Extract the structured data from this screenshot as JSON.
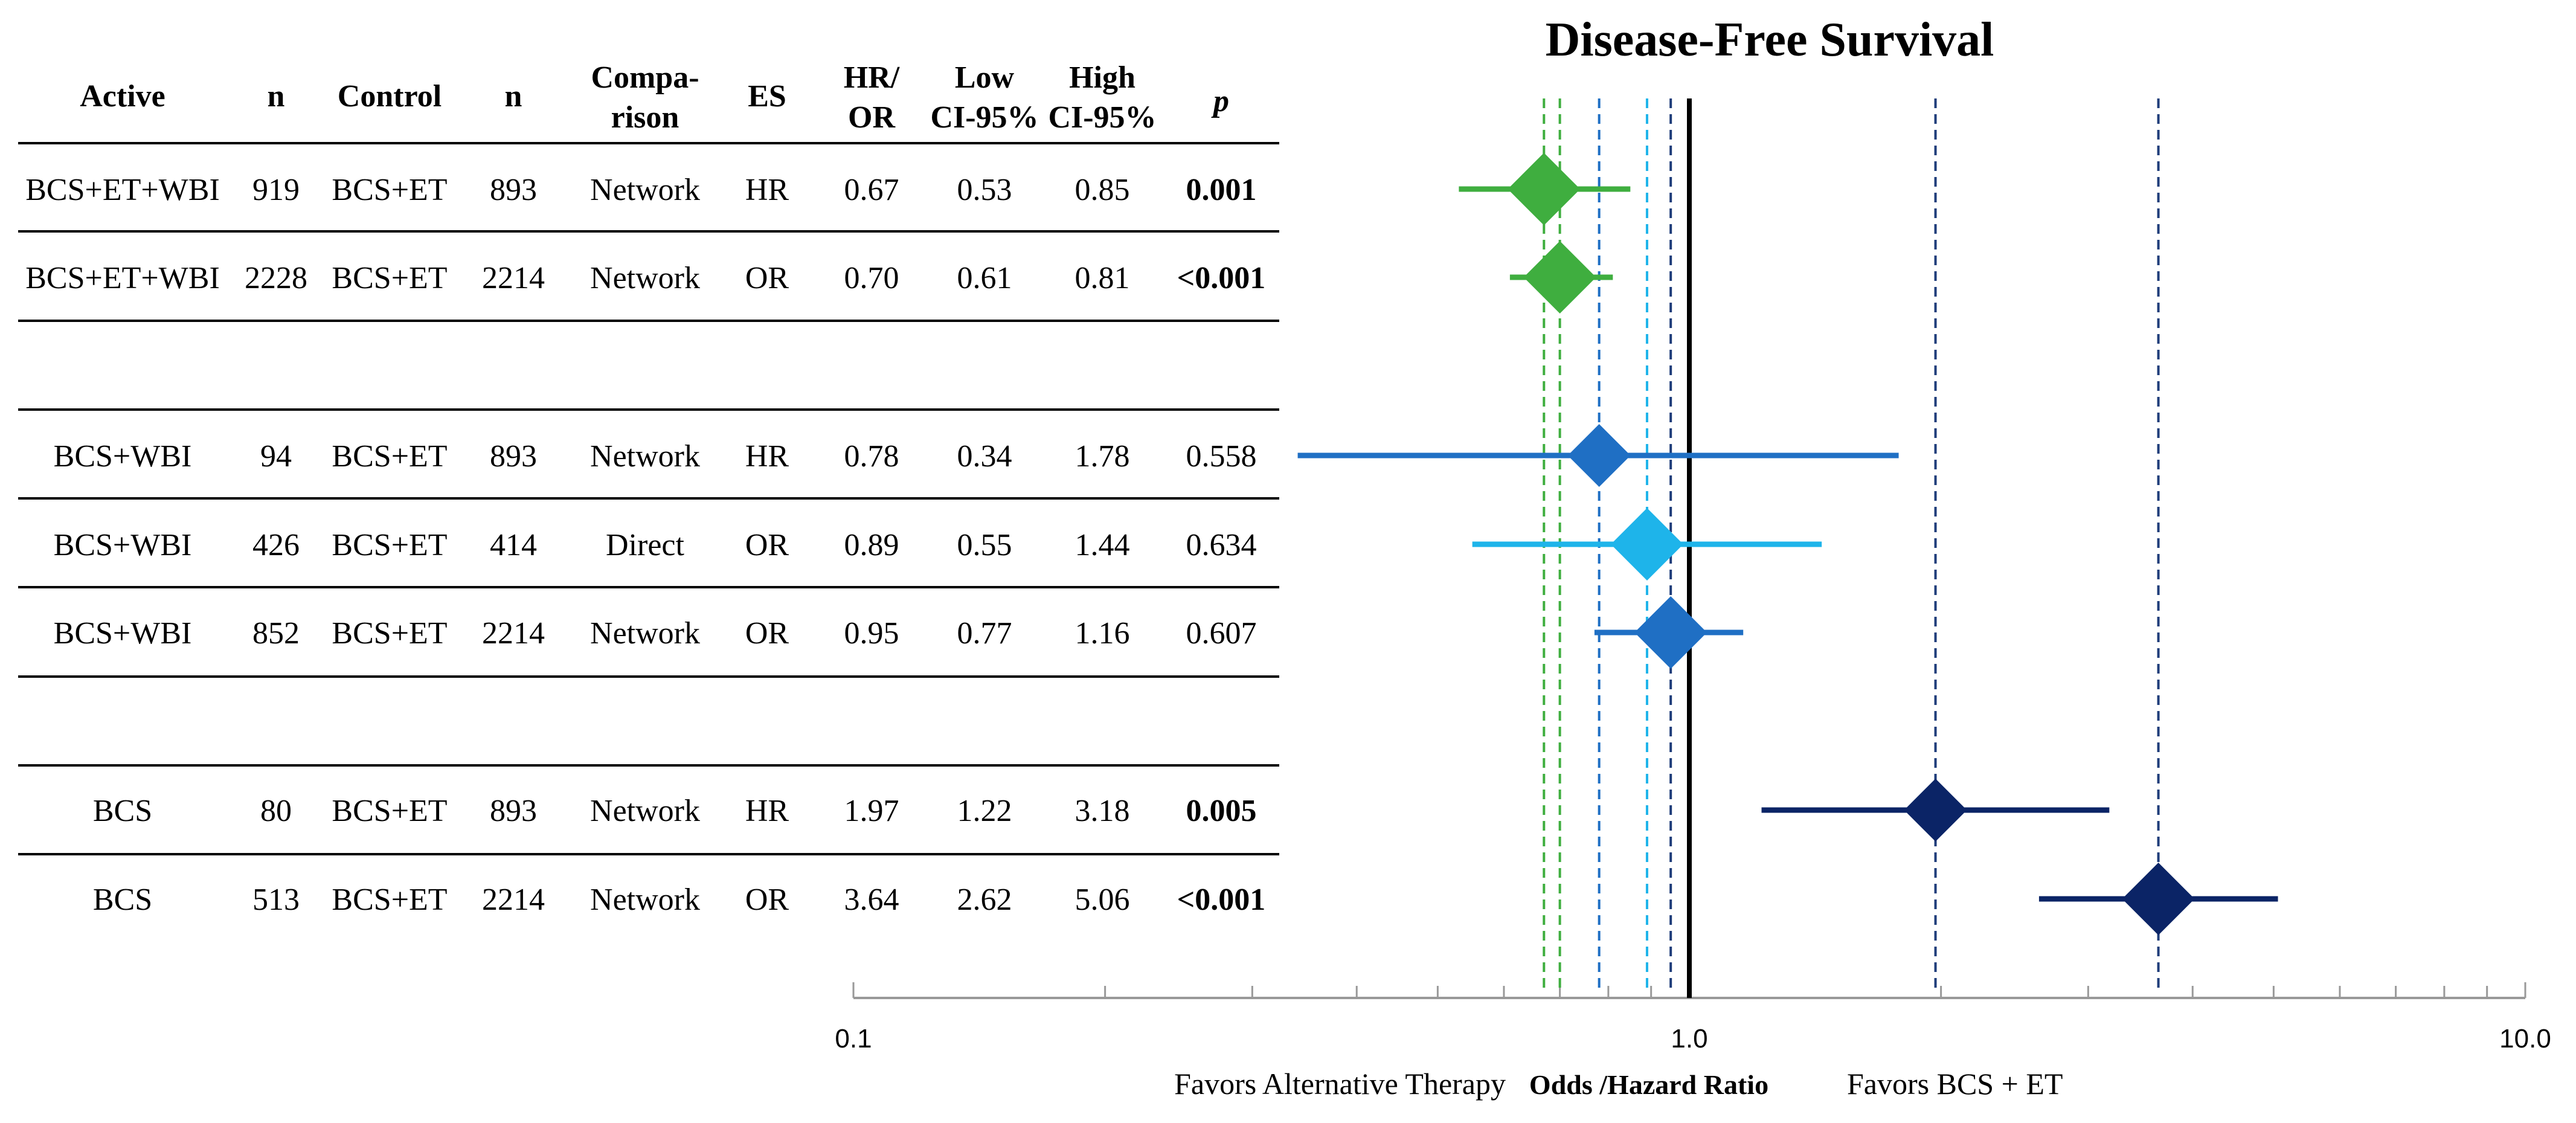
{
  "table": {
    "headers": {
      "active": "Active",
      "n1": "n",
      "control": "Control",
      "n2": "n",
      "comparison_1": "Compa-",
      "comparison_2": "rison",
      "es": "ES",
      "hr_or_1": "HR/",
      "hr_or_2": "OR",
      "low_1": "Low",
      "low_2": "CI-95%",
      "high_1": "High",
      "high_2": "CI-95%",
      "p": "p"
    },
    "rows": [
      {
        "active": "BCS+ET+WBI",
        "n1": "919",
        "control": "BCS+ET",
        "n2": "893",
        "comparison": "Network",
        "es": "HR",
        "hr": "0.67",
        "low": "0.53",
        "high": "0.85",
        "p": "0.001",
        "p_bold": true,
        "group": 0
      },
      {
        "active": "BCS+ET+WBI",
        "n1": "2228",
        "control": "BCS+ET",
        "n2": "2214",
        "comparison": "Network",
        "es": "OR",
        "hr": "0.70",
        "low": "0.61",
        "high": "0.81",
        "p": "<0.001",
        "p_bold": true,
        "group": 0
      },
      {
        "active": "BCS+WBI",
        "n1": "94",
        "control": "BCS+ET",
        "n2": "893",
        "comparison": "Network",
        "es": "HR",
        "hr": "0.78",
        "low": "0.34",
        "high": "1.78",
        "p": "0.558",
        "p_bold": false,
        "group": 1
      },
      {
        "active": "BCS+WBI",
        "n1": "426",
        "control": "BCS+ET",
        "n2": "414",
        "comparison": "Direct",
        "es": "OR",
        "hr": "0.89",
        "low": "0.55",
        "high": "1.44",
        "p": "0.634",
        "p_bold": false,
        "group": 1
      },
      {
        "active": "BCS+WBI",
        "n1": "852",
        "control": "BCS+ET",
        "n2": "2214",
        "comparison": "Network",
        "es": "OR",
        "hr": "0.95",
        "low": "0.77",
        "high": "1.16",
        "p": "0.607",
        "p_bold": false,
        "group": 1
      },
      {
        "active": "BCS",
        "n1": "80",
        "control": "BCS+ET",
        "n2": "893",
        "comparison": "Network",
        "es": "HR",
        "hr": "1.97",
        "low": "1.22",
        "high": "3.18",
        "p": "0.005",
        "p_bold": true,
        "group": 2
      },
      {
        "active": "BCS",
        "n1": "513",
        "control": "BCS+ET",
        "n2": "2214",
        "comparison": "Network",
        "es": "OR",
        "hr": "3.64",
        "low": "2.62",
        "high": "5.06",
        "p": "<0.001",
        "p_bold": true,
        "group": 2
      }
    ]
  },
  "chart_data": {
    "type": "forest",
    "title": "Disease-Free Survival",
    "x_scale": "log",
    "xlim": [
      0.1,
      10.0
    ],
    "xticks": [
      0.1,
      1.0,
      10.0
    ],
    "xtick_labels": [
      "0.1",
      "1.0",
      "10.0"
    ],
    "xlabel": "Odds /Hazard Ratio",
    "left_note": "Favors Alternative Therapy",
    "right_note": "Favors BCS + ET",
    "reference_value": 1.0,
    "points": [
      {
        "label": "BCS+ET+WBI vs BCS+ET (HR)",
        "estimate": 0.67,
        "low": 0.53,
        "high": 0.85,
        "color": "#3fae3f"
      },
      {
        "label": "BCS+ET+WBI vs BCS+ET (OR)",
        "estimate": 0.7,
        "low": 0.61,
        "high": 0.81,
        "color": "#3fae3f"
      },
      {
        "label": "BCS+WBI vs BCS+ET (HR)",
        "estimate": 0.78,
        "low": 0.34,
        "high": 1.78,
        "color": "#1f6fc4"
      },
      {
        "label": "BCS+WBI vs BCS+ET (OR, direct)",
        "estimate": 0.89,
        "low": 0.55,
        "high": 1.44,
        "color": "#1eb4ea"
      },
      {
        "label": "BCS+WBI vs BCS+ET (OR)",
        "estimate": 0.95,
        "low": 0.77,
        "high": 1.16,
        "color": "#1f6fc4"
      },
      {
        "label": "BCS vs BCS+ET (HR)",
        "estimate": 1.97,
        "low": 1.22,
        "high": 3.18,
        "color": "#0b2466"
      },
      {
        "label": "BCS vs BCS+ET (OR)",
        "estimate": 3.64,
        "low": 2.62,
        "high": 5.06,
        "color": "#0b2466"
      }
    ],
    "reference_lines": [
      {
        "value": 0.67,
        "color": "#3fae3f"
      },
      {
        "value": 0.7,
        "color": "#3fae3f"
      },
      {
        "value": 0.78,
        "color": "#1f6fc4"
      },
      {
        "value": 0.89,
        "color": "#1eb4ea"
      },
      {
        "value": 0.95,
        "color": "#1f3d7a"
      },
      {
        "value": 1.97,
        "color": "#1f3d7a"
      },
      {
        "value": 3.64,
        "color": "#1f3d7a"
      }
    ]
  }
}
